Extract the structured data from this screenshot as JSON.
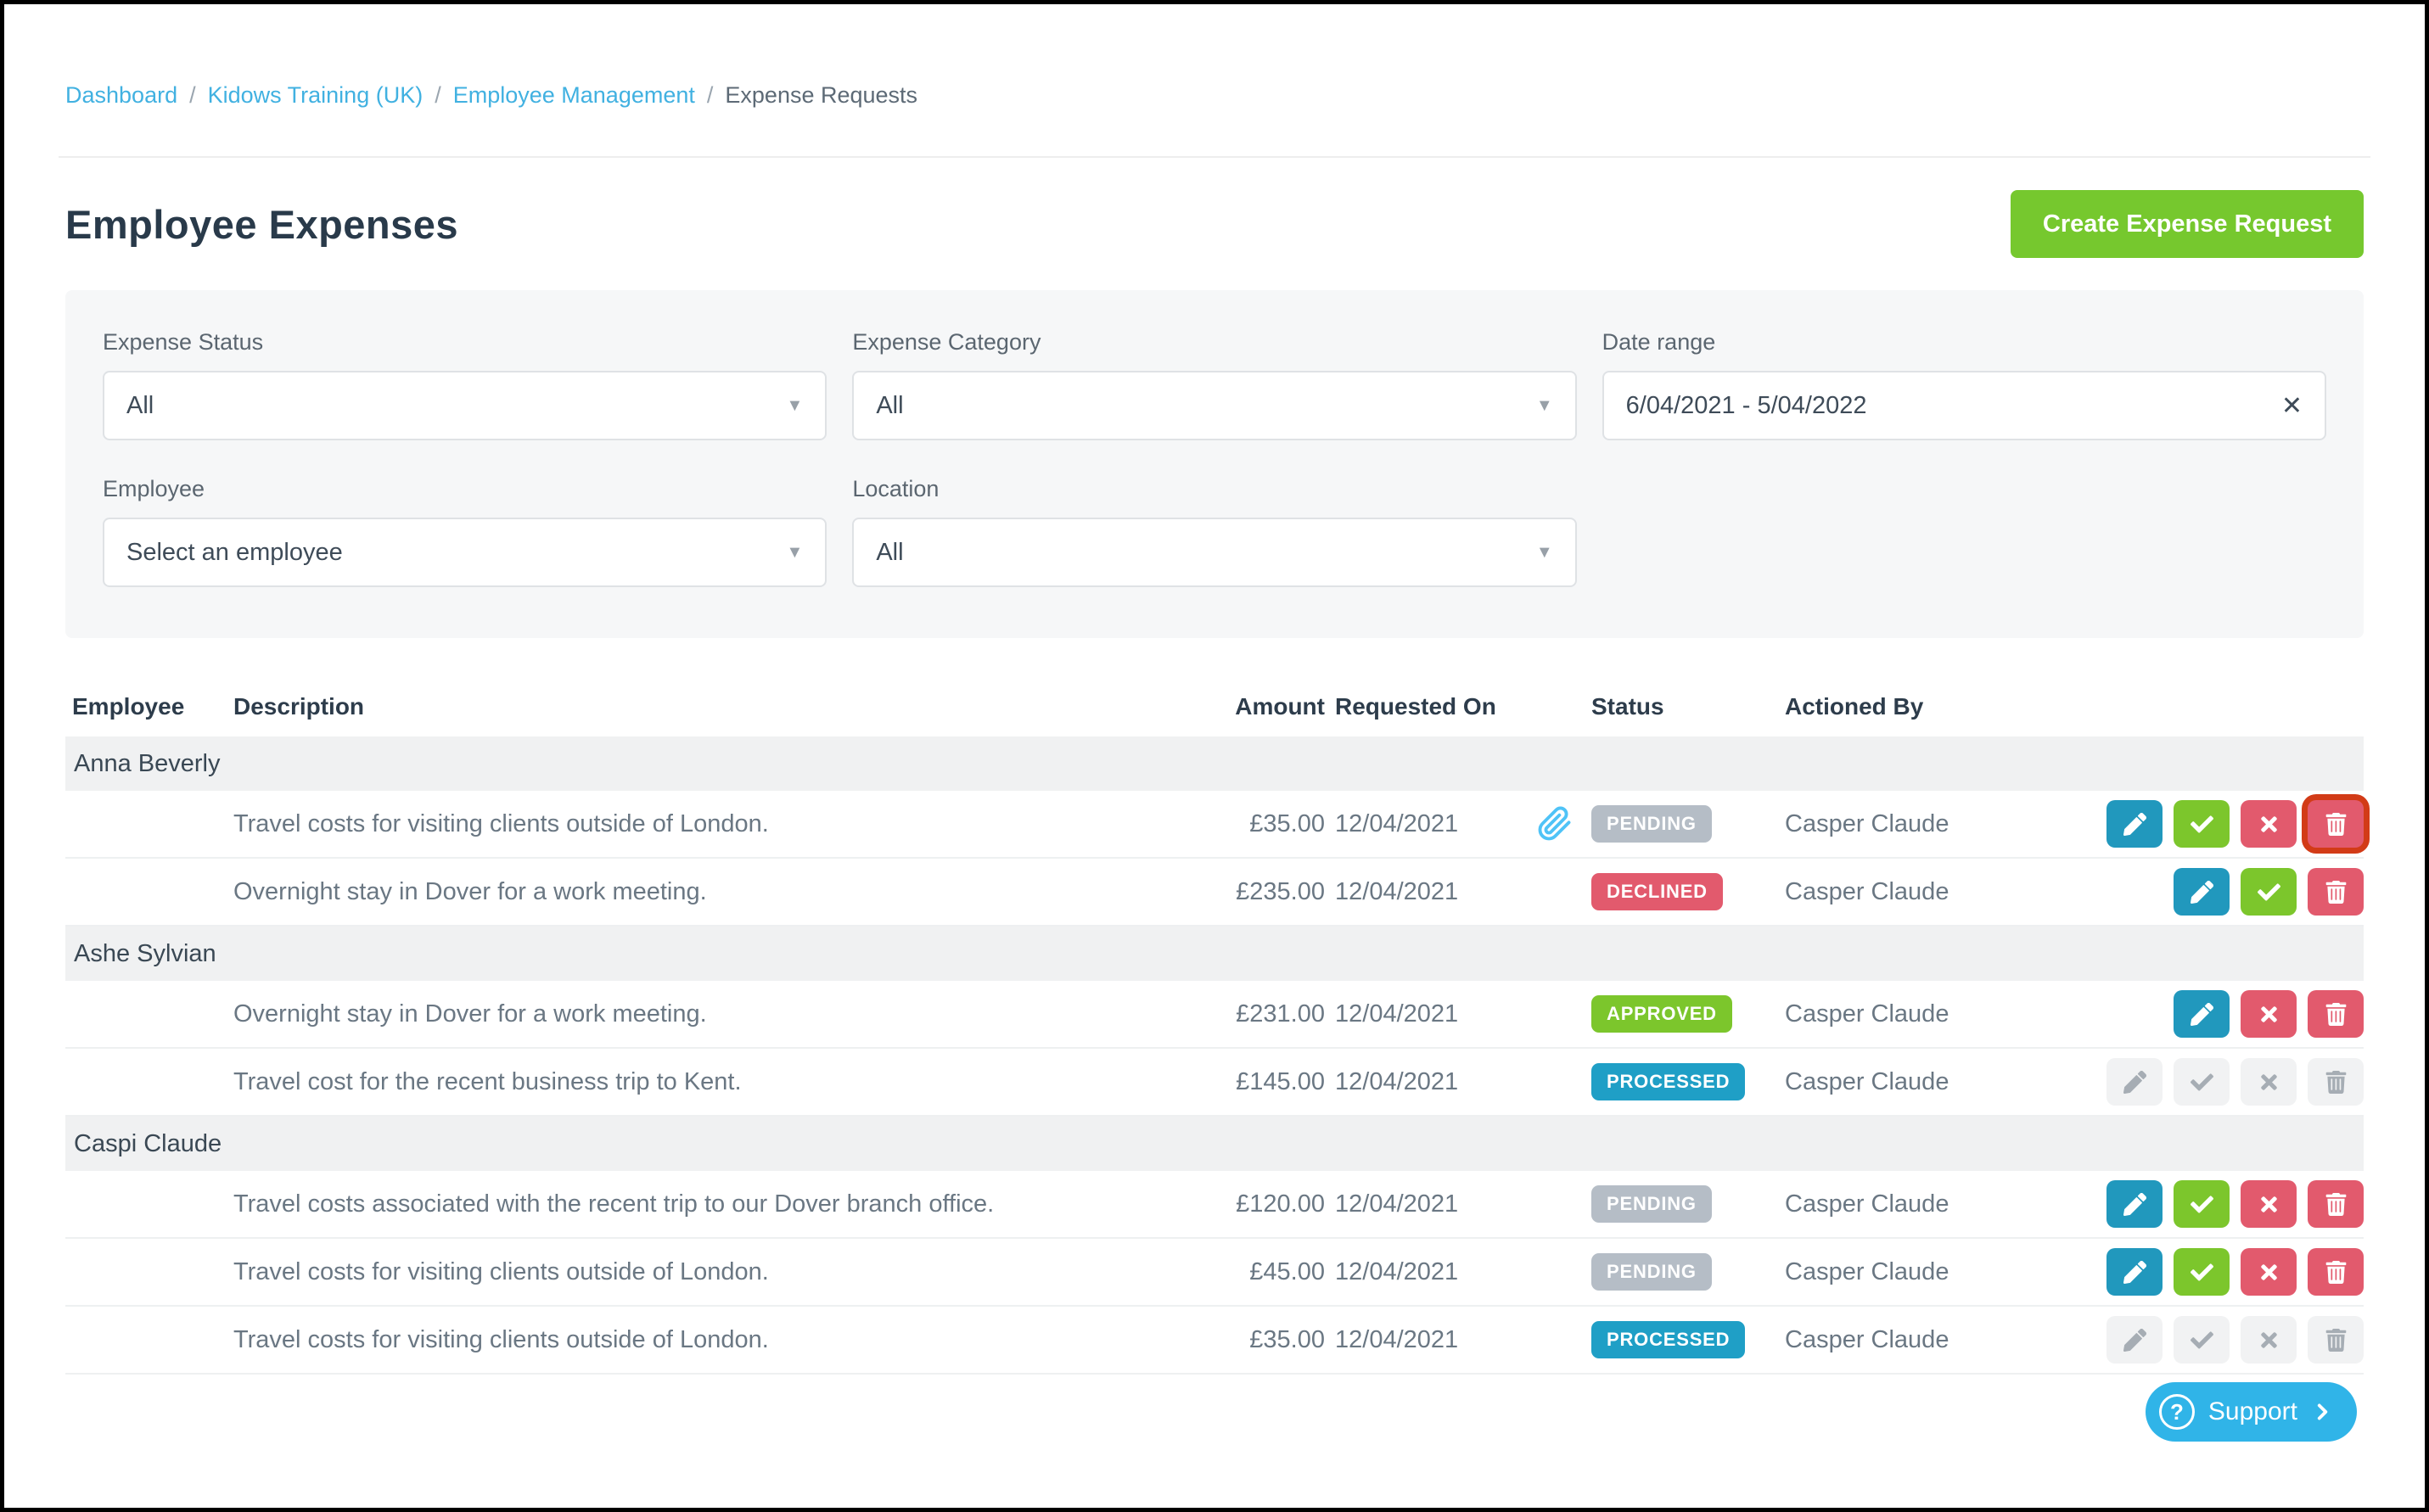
{
  "breadcrumb": {
    "separator": "/",
    "items": [
      {
        "label": "Dashboard"
      },
      {
        "label": "Kidows Training (UK)"
      },
      {
        "label": "Employee Management"
      },
      {
        "label": "Expense Requests"
      }
    ]
  },
  "page": {
    "title": "Employee Expenses"
  },
  "toolbar": {
    "create_button_label": "Create Expense Request"
  },
  "filters": {
    "expense_status": {
      "label": "Expense Status",
      "value": "All"
    },
    "expense_category": {
      "label": "Expense Category",
      "value": "All"
    },
    "date_range": {
      "label": "Date range",
      "value": "6/04/2021 - 5/04/2022",
      "clear_icon": "✕"
    },
    "employee": {
      "label": "Employee",
      "value": "Select an employee"
    },
    "location": {
      "label": "Location",
      "value": "All"
    },
    "caret_icon": "▼"
  },
  "table": {
    "columns": {
      "employee": "Employee",
      "description": "Description",
      "amount": "Amount",
      "requested_on": "Requested On",
      "status": "Status",
      "actioned_by": "Actioned By"
    },
    "groups": [
      {
        "employee": "Anna Beverly",
        "rows": [
          {
            "description": "Travel costs for visiting clients outside of London.",
            "amount": "£35.00",
            "requested_on": "12/04/2021",
            "has_attachment": true,
            "status": "PENDING",
            "actioned_by": "Casper Claude",
            "actions": [
              "edit",
              "approve",
              "decline",
              "delete"
            ],
            "disabled": false,
            "highlight": "delete"
          },
          {
            "description": "Overnight stay in Dover for a work meeting.",
            "amount": "£235.00",
            "requested_on": "12/04/2021",
            "has_attachment": false,
            "status": "DECLINED",
            "actioned_by": "Casper Claude",
            "actions": [
              "edit",
              "approve",
              "delete"
            ],
            "disabled": false,
            "highlight": null
          }
        ]
      },
      {
        "employee": "Ashe Sylvian",
        "rows": [
          {
            "description": "Overnight stay in Dover for a work meeting.",
            "amount": "£231.00",
            "requested_on": "12/04/2021",
            "has_attachment": false,
            "status": "APPROVED",
            "actioned_by": "Casper Claude",
            "actions": [
              "edit",
              "decline",
              "delete"
            ],
            "disabled": false,
            "highlight": null
          },
          {
            "description": "Travel cost for the recent business trip to Kent.",
            "amount": "£145.00",
            "requested_on": "12/04/2021",
            "has_attachment": false,
            "status": "PROCESSED",
            "actioned_by": "Casper Claude",
            "actions": [
              "edit",
              "approve",
              "decline",
              "delete"
            ],
            "disabled": true,
            "highlight": null
          }
        ]
      },
      {
        "employee": "Caspi Claude",
        "rows": [
          {
            "description": "Travel costs associated with the recent trip to our Dover branch office.",
            "amount": "£120.00",
            "requested_on": "12/04/2021",
            "has_attachment": false,
            "status": "PENDING",
            "actioned_by": "Casper Claude",
            "actions": [
              "edit",
              "approve",
              "decline",
              "delete"
            ],
            "disabled": false,
            "highlight": null
          },
          {
            "description": "Travel costs for visiting clients outside of London.",
            "amount": "£45.00",
            "requested_on": "12/04/2021",
            "has_attachment": false,
            "status": "PENDING",
            "actioned_by": "Casper Claude",
            "actions": [
              "edit",
              "approve",
              "decline",
              "delete"
            ],
            "disabled": false,
            "highlight": null
          },
          {
            "description": "Travel costs for visiting clients outside of London.",
            "amount": "£35.00",
            "requested_on": "12/04/2021",
            "has_attachment": false,
            "status": "PROCESSED",
            "actioned_by": "Casper Claude",
            "actions": [
              "edit",
              "approve",
              "decline",
              "delete"
            ],
            "disabled": true,
            "highlight": null
          }
        ]
      }
    ]
  },
  "support": {
    "label": "Support",
    "question_mark": "?"
  },
  "colors": {
    "link_blue": "#41b1e1",
    "accent_green": "#76c82e",
    "support_blue": "#30b4e8",
    "paperclip_blue": "#4fc3f7",
    "highlight_outline": "#d23b17",
    "actions": {
      "edit": "#2198bd",
      "approve": "#7cc62c",
      "decline": "#e25a6d",
      "delete": "#e25a6d"
    },
    "status": {
      "PENDING": "#b5bdc6",
      "DECLINED": "#e25a6d",
      "APPROVED": "#7cc62c",
      "PROCESSED": "#1f9fc6"
    }
  }
}
